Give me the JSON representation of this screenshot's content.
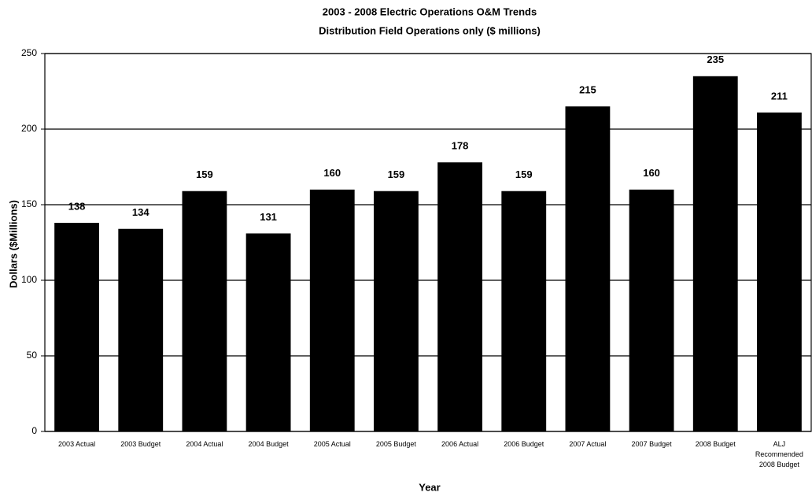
{
  "chart_data": {
    "type": "bar",
    "title": "2003 - 2008 Electric Operations O&M Trends",
    "subtitle": "Distribution Field Operations only ($ millions)",
    "x_label": "Year",
    "y_label": "Dollars ($Millions)",
    "categories": [
      "2003 Actual",
      "2003 Budget",
      "2004 Actual",
      "2004 Budget",
      "2005 Actual",
      "2005 Budget",
      "2006 Actual",
      "2006 Budget",
      "2007 Actual",
      "2007 Budget",
      "2008 Budget",
      "ALJ Recommended 2008 Budget"
    ],
    "values": [
      138,
      134,
      159,
      131,
      160,
      159,
      178,
      159,
      215,
      160,
      235,
      211
    ],
    "color": "#000000",
    "ylim": [
      0,
      250
    ],
    "yticks": [
      0,
      50,
      100,
      150,
      200,
      250
    ],
    "grid": true
  }
}
